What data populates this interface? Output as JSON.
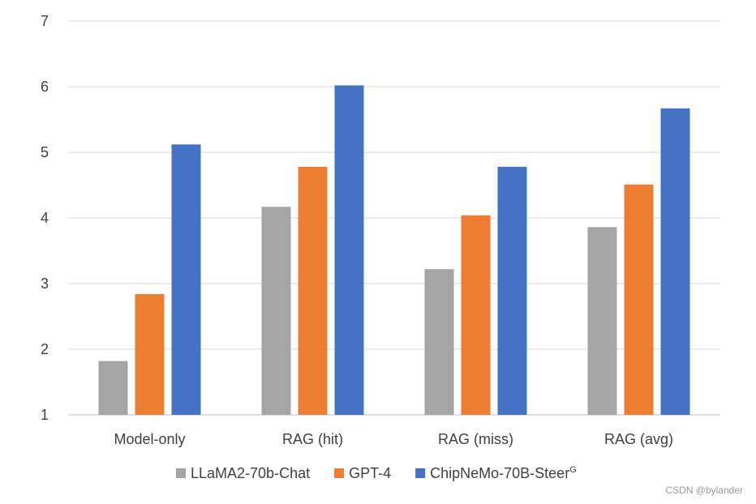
{
  "chart_data": {
    "type": "bar",
    "title": "",
    "xlabel": "",
    "ylabel": "",
    "categories": [
      "Model-only",
      "RAG (hit)",
      "RAG (miss)",
      "RAG (avg)"
    ],
    "ylim": [
      1,
      7
    ],
    "yticks": [
      1,
      2,
      3,
      4,
      5,
      6,
      7
    ],
    "grid": true,
    "legend_position": "bottom",
    "series": [
      {
        "name": "LLaMA2-70b-Chat",
        "color": "#a5a5a5",
        "values": [
          1.82,
          4.17,
          3.22,
          3.86
        ]
      },
      {
        "name": "GPT-4",
        "color": "#ed7d31",
        "values": [
          2.84,
          4.78,
          4.04,
          4.51
        ]
      },
      {
        "name": "ChipNeMo-70B-Steer",
        "superscript": "G",
        "color": "#4472c4",
        "values": [
          5.12,
          6.02,
          4.78,
          5.67
        ]
      }
    ]
  },
  "watermark": "CSDN @bylander"
}
